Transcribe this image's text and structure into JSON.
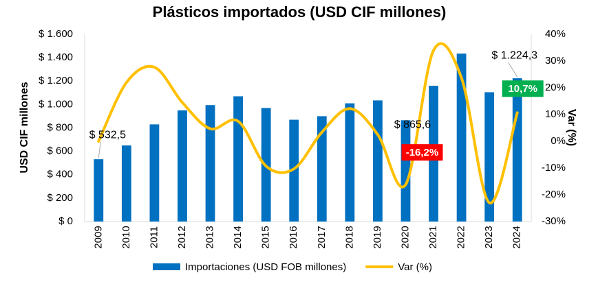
{
  "chart_data": {
    "type": "bar_line",
    "title": "Plásticos importados (USD CIF millones)",
    "ylabel": "USD CIF millones",
    "y2label": "Var (%)",
    "categories": [
      "2009",
      "2010",
      "2011",
      "2012",
      "2013",
      "2014",
      "2015",
      "2016",
      "2017",
      "2018",
      "2019",
      "2020",
      "2021",
      "2022",
      "2023",
      "2024"
    ],
    "series": [
      {
        "name": "Importaciones (USD FOB millones)",
        "color": "#0070c0",
        "type": "bar",
        "values": [
          532.5,
          650,
          830,
          950,
          995,
          1070,
          970,
          870,
          900,
          1010,
          1035,
          865.6,
          1160,
          1435,
          1105,
          1224.3
        ],
        "value_labels": [
          "$ 532,5",
          null,
          null,
          null,
          null,
          null,
          null,
          null,
          null,
          null,
          null,
          "$ 865,6",
          null,
          null,
          null,
          "$ 1.224,3"
        ]
      },
      {
        "name": "Var (%)",
        "color": "#ffc000",
        "type": "line",
        "axis": "y2",
        "values": [
          0,
          22,
          27.7,
          14.5,
          4.7,
          7.5,
          -9.3,
          -10.3,
          3.4,
          12.2,
          2.5,
          -16.2,
          34,
          23.7,
          -23,
          10.7
        ],
        "value_labels": [
          null,
          null,
          null,
          null,
          null,
          null,
          null,
          null,
          null,
          null,
          null,
          "-16,2%",
          null,
          null,
          null,
          "10,7%"
        ]
      }
    ],
    "ylim": [
      0,
      1600
    ],
    "yticks": [
      {
        "value": 0,
        "label": "$ 0"
      },
      {
        "value": 200,
        "label": "$ 200"
      },
      {
        "value": 400,
        "label": "$ 400"
      },
      {
        "value": 600,
        "label": "$ 600"
      },
      {
        "value": 800,
        "label": "$ 800"
      },
      {
        "value": 1000,
        "label": "$ 1.000"
      },
      {
        "value": 1200,
        "label": "$ 1.200"
      },
      {
        "value": 1400,
        "label": "$ 1.400"
      },
      {
        "value": 1600,
        "label": "$ 1.600"
      }
    ],
    "y2lim": [
      -30,
      40
    ],
    "y2ticks": [
      {
        "value": -30,
        "label": "-30%"
      },
      {
        "value": -20,
        "label": "-20%"
      },
      {
        "value": -10,
        "label": "-10%"
      },
      {
        "value": 0,
        "label": "0%"
      },
      {
        "value": 10,
        "label": "10%"
      },
      {
        "value": 20,
        "label": "20%"
      },
      {
        "value": 30,
        "label": "30%"
      },
      {
        "value": 40,
        "label": "40%"
      }
    ],
    "legend": "bottom"
  }
}
